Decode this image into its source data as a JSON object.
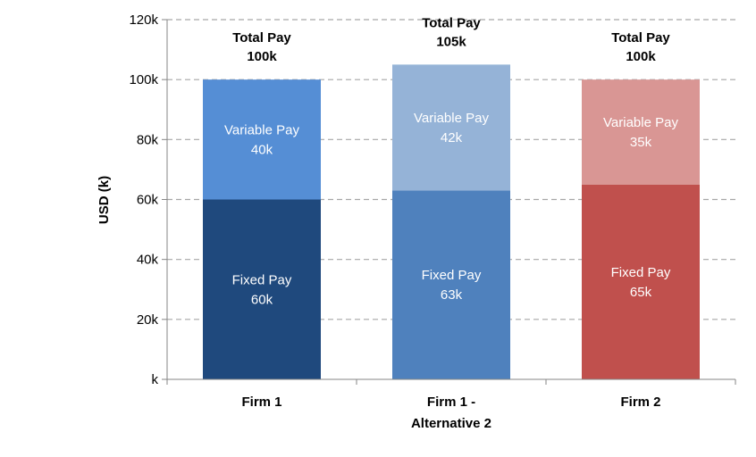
{
  "chart_data": {
    "type": "bar",
    "stacked": true,
    "ylabel": "USD (k)",
    "ylim": [
      0,
      120
    ],
    "yticks": [
      0,
      20,
      40,
      60,
      80,
      100,
      120
    ],
    "ytick_labels": [
      "k",
      "20k",
      "40k",
      "60k",
      "80k",
      "100k",
      "120k"
    ],
    "grid": "horizontal-dashed",
    "categories": [
      {
        "lines": [
          "Firm 1"
        ]
      },
      {
        "lines": [
          "Firm 1 -",
          "Alternative 2"
        ]
      },
      {
        "lines": [
          "Firm 2"
        ]
      }
    ],
    "bars": [
      {
        "total": 100,
        "total_lines": [
          "Total Pay",
          "100k"
        ],
        "segments": [
          {
            "value": 60,
            "lines": [
              "Fixed Pay",
              "60k"
            ],
            "color": "#1f497d"
          },
          {
            "value": 40,
            "lines": [
              "Variable Pay",
              "40k"
            ],
            "color": "#558ed5"
          }
        ]
      },
      {
        "total": 105,
        "total_lines": [
          "Total Pay",
          "105k"
        ],
        "segments": [
          {
            "value": 63,
            "lines": [
              "Fixed Pay",
              "63k"
            ],
            "color": "#4f81bd"
          },
          {
            "value": 42,
            "lines": [
              "Variable Pay",
              "42k"
            ],
            "color": "#95b3d7"
          }
        ]
      },
      {
        "total": 100,
        "total_lines": [
          "Total Pay",
          "100k"
        ],
        "segments": [
          {
            "value": 65,
            "lines": [
              "Fixed Pay",
              "65k"
            ],
            "color": "#c0504d"
          },
          {
            "value": 35,
            "lines": [
              "Variable Pay",
              "35k"
            ],
            "color": "#d99694"
          }
        ]
      }
    ]
  }
}
